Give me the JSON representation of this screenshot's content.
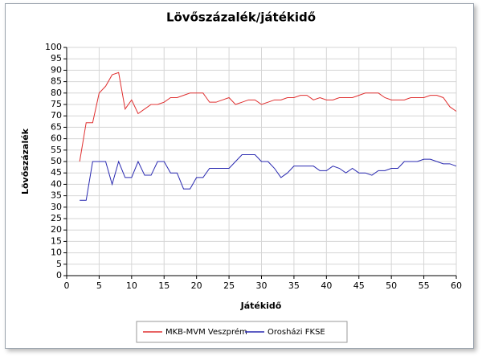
{
  "chart_data": {
    "type": "line",
    "title": "Lövőszázalék/játékidő",
    "x_label": "Játékidő",
    "y_label": "Lövőszázalék",
    "x": [
      2,
      3,
      4,
      5,
      6,
      7,
      8,
      9,
      10,
      11,
      12,
      13,
      14,
      15,
      16,
      17,
      18,
      19,
      20,
      21,
      22,
      23,
      24,
      25,
      26,
      27,
      28,
      29,
      30,
      31,
      32,
      33,
      34,
      35,
      36,
      37,
      38,
      39,
      40,
      41,
      42,
      43,
      44,
      45,
      46,
      47,
      48,
      49,
      50,
      51,
      52,
      53,
      54,
      55,
      56,
      57,
      58,
      59,
      60
    ],
    "series": [
      {
        "name": "MKB-MVM Veszprém",
        "color": "#e03030",
        "values": [
          50,
          67,
          67,
          80,
          83,
          88,
          89,
          73,
          77,
          71,
          73,
          75,
          75,
          76,
          78,
          78,
          79,
          80,
          80,
          80,
          76,
          76,
          77,
          78,
          75,
          76,
          77,
          77,
          75,
          76,
          77,
          77,
          78,
          78,
          79,
          79,
          77,
          78,
          77,
          77,
          78,
          78,
          78,
          79,
          80,
          80,
          80,
          78,
          77,
          77,
          77,
          78,
          78,
          78,
          79,
          79,
          78,
          74,
          72
        ]
      },
      {
        "name": "Orosházi FKSE",
        "color": "#2828b0",
        "values": [
          33,
          33,
          50,
          50,
          50,
          40,
          50,
          43,
          43,
          50,
          44,
          44,
          50,
          50,
          45,
          45,
          38,
          38,
          43,
          43,
          47,
          47,
          47,
          47,
          50,
          53,
          53,
          53,
          50,
          50,
          47,
          43,
          45,
          48,
          48,
          48,
          48,
          46,
          46,
          48,
          47,
          45,
          47,
          45,
          45,
          44,
          46,
          46,
          47,
          47,
          50,
          50,
          50,
          51,
          51,
          50,
          49,
          49,
          48
        ]
      }
    ],
    "xlim": [
      0,
      60
    ],
    "xticks": [
      0,
      5,
      10,
      15,
      20,
      25,
      30,
      35,
      40,
      45,
      50,
      55,
      60
    ],
    "ylim": [
      0,
      100
    ],
    "yticks": [
      0,
      5,
      10,
      15,
      20,
      25,
      30,
      35,
      40,
      45,
      50,
      55,
      60,
      65,
      70,
      75,
      80,
      85,
      90,
      95,
      100
    ],
    "grid": true,
    "legend": "bottom"
  }
}
